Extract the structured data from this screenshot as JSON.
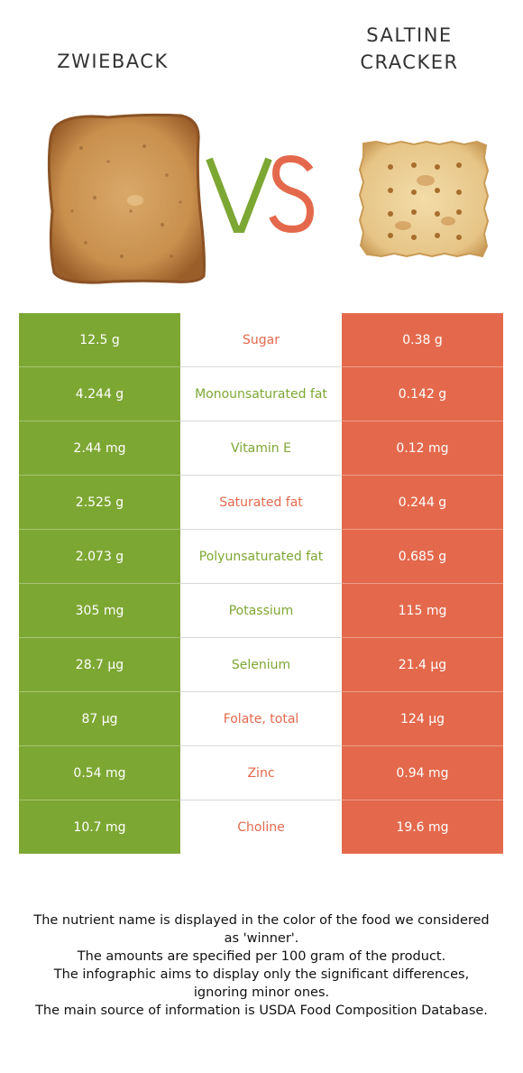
{
  "foods": {
    "left": {
      "name": "ZWIEBACK",
      "image": "zwieback-rusk-image",
      "color": "#7da733"
    },
    "right": {
      "name_line1": "SALTINE",
      "name_line2": "CRACKER",
      "image": "saltine-cracker-image",
      "color": "#e4694c"
    }
  },
  "vs": {
    "v_color": "#7da733",
    "s_color": "#e4694c"
  },
  "rows": [
    {
      "left": "12.5 g",
      "nutrient": "Sugar",
      "winner_color": "#e4694c",
      "right": "0.38 g"
    },
    {
      "left": "4.244 g",
      "nutrient": "Monounsaturated fat",
      "winner_color": "#7da733",
      "right": "0.142 g"
    },
    {
      "left": "2.44 mg",
      "nutrient": "Vitamin E",
      "winner_color": "#7da733",
      "right": "0.12 mg"
    },
    {
      "left": "2.525 g",
      "nutrient": "Saturated fat",
      "winner_color": "#e4694c",
      "right": "0.244 g"
    },
    {
      "left": "2.073 g",
      "nutrient": "Polyunsaturated fat",
      "winner_color": "#7da733",
      "right": "0.685 g"
    },
    {
      "left": "305 mg",
      "nutrient": "Potassium",
      "winner_color": "#7da733",
      "right": "115 mg"
    },
    {
      "left": "28.7 µg",
      "nutrient": "Selenium",
      "winner_color": "#7da733",
      "right": "21.4 µg"
    },
    {
      "left": "87 µg",
      "nutrient": "Folate, total",
      "winner_color": "#e4694c",
      "right": "124 µg"
    },
    {
      "left": "0.54 mg",
      "nutrient": "Zinc",
      "winner_color": "#e4694c",
      "right": "0.94 mg"
    },
    {
      "left": "10.7 mg",
      "nutrient": "Choline",
      "winner_color": "#e4694c",
      "right": "19.6 mg"
    }
  ],
  "footer": {
    "line1": "The nutrient name is displayed in the color of the food we considered as 'winner'.",
    "line2": "The amounts are specified per 100 gram of the product.",
    "line3": "The infographic aims to display only the significant differences, ignoring minor ones.",
    "line4": "The main source of information is USDA Food Composition Database."
  }
}
